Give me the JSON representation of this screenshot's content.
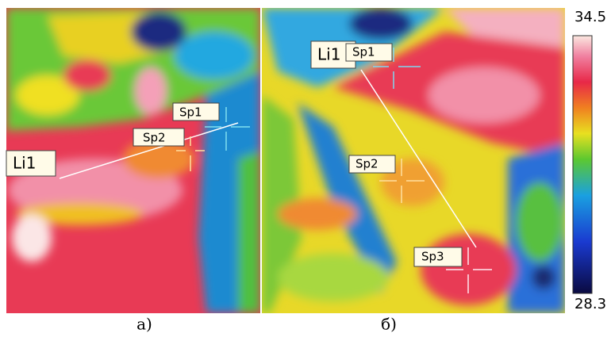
{
  "panels": [
    {
      "caption": "а)",
      "labels": {
        "sp1": "Sp1",
        "sp2": "Sp2",
        "li1": "Li1"
      }
    },
    {
      "caption": "б)",
      "labels": {
        "li1": "Li1",
        "sp1": "Sp1",
        "sp2": "Sp2",
        "sp3": "Sp3"
      }
    }
  ],
  "colorbar": {
    "max": "34.5",
    "min": "28.3"
  }
}
